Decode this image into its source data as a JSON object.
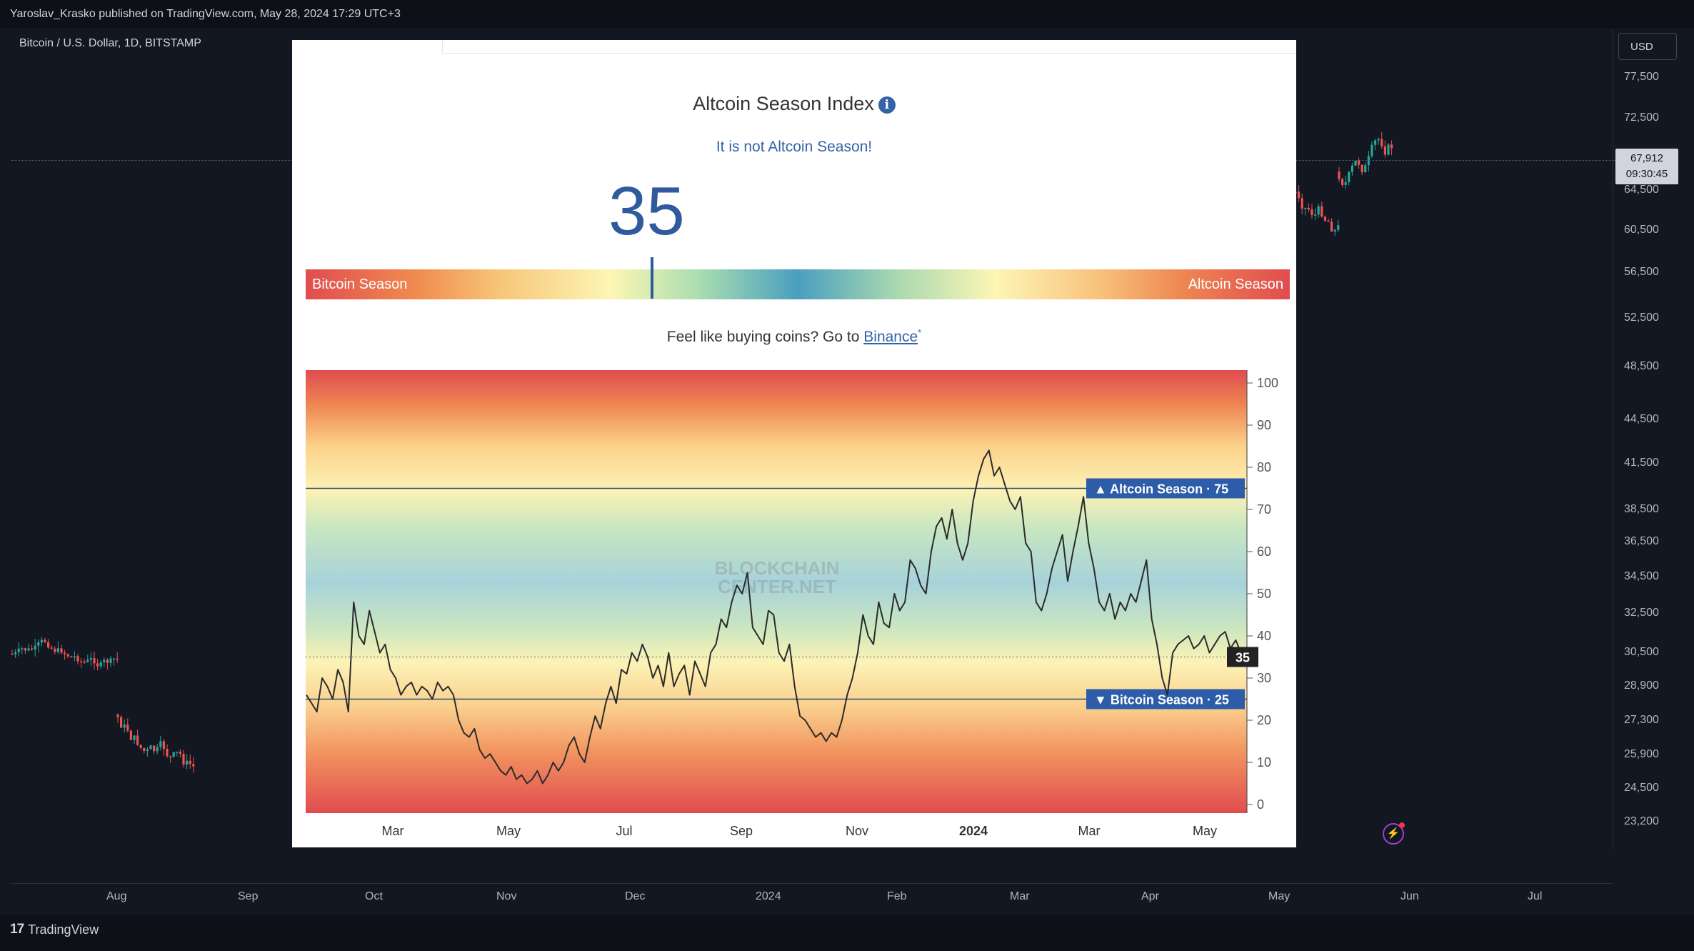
{
  "header": {
    "published": "Yaroslav_Krasko published on TradingView.com, May 28, 2024 17:29 UTC+3"
  },
  "chart": {
    "symbol": "Bitcoin / U.S. Dollar, 1D, BITSTAMP",
    "currency": "USD",
    "price_ticks": [
      "77,500",
      "72,500",
      "64,500",
      "60,500",
      "56,500",
      "52,500",
      "48,500",
      "44,500",
      "41,500",
      "38,500",
      "36,500",
      "34,500",
      "32,500",
      "30,500",
      "28,900",
      "27,300",
      "25,900",
      "24,500",
      "23,200"
    ],
    "last_price": "67,912",
    "countdown": "09:30:45",
    "time_ticks": [
      "Aug",
      "Sep",
      "Oct",
      "Nov",
      "Dec",
      "2024",
      "Feb",
      "Mar",
      "Apr",
      "May",
      "Jun",
      "Jul"
    ]
  },
  "panel": {
    "title": "Altcoin Season Index",
    "info_icon": "info-icon",
    "status": "It is not Altcoin Season!",
    "index_value": "35",
    "gauge_left": "Bitcoin Season",
    "gauge_right": "Altcoin Season",
    "buy_text": "Feel like buying coins? Go to",
    "buy_link": "Binance",
    "buy_mark": "*"
  },
  "footer": {
    "brand": "TradingView"
  },
  "colors": {
    "accent": "#3563a8",
    "bg": "#131722",
    "up": "#26a69a",
    "down": "#ef5350"
  },
  "chart_data": {
    "type": "line",
    "title": "Altcoin Season Index",
    "x_labels": [
      "Mar",
      "May",
      "Jul",
      "Sep",
      "Nov",
      "2024",
      "Mar",
      "May"
    ],
    "y_ticks": [
      0,
      10,
      20,
      30,
      40,
      50,
      60,
      70,
      80,
      90,
      100
    ],
    "ylim": [
      0,
      100
    ],
    "watermark": "BLOCKCHAIN CENTER.NET",
    "thresholds": [
      {
        "name": "Altcoin Season",
        "value": 75,
        "label": "▲ Altcoin Season · 75"
      },
      {
        "name": "Bitcoin Season",
        "value": 25,
        "label": "▼ Bitcoin Season · 25"
      }
    ],
    "current": 35,
    "series": [
      {
        "name": "Altcoin Season Index",
        "values": [
          26,
          24,
          22,
          30,
          28,
          25,
          32,
          29,
          22,
          48,
          40,
          38,
          46,
          41,
          36,
          38,
          32,
          30,
          26,
          28,
          29,
          26,
          28,
          27,
          25,
          29,
          27,
          28,
          26,
          20,
          17,
          16,
          18,
          13,
          11,
          12,
          10,
          8,
          7,
          9,
          6,
          7,
          5,
          6,
          8,
          5,
          7,
          10,
          8,
          10,
          14,
          16,
          12,
          10,
          16,
          21,
          18,
          24,
          28,
          24,
          32,
          31,
          36,
          34,
          38,
          35,
          30,
          33,
          28,
          36,
          28,
          31,
          33,
          26,
          34,
          31,
          28,
          36,
          38,
          44,
          42,
          48,
          52,
          50,
          55,
          42,
          40,
          38,
          46,
          45,
          36,
          34,
          38,
          28,
          21,
          20,
          18,
          16,
          17,
          15,
          17,
          16,
          20,
          26,
          30,
          36,
          45,
          40,
          38,
          48,
          43,
          42,
          50,
          46,
          48,
          58,
          56,
          52,
          50,
          60,
          66,
          68,
          63,
          70,
          62,
          58,
          62,
          72,
          78,
          82,
          84,
          78,
          80,
          76,
          72,
          70,
          73,
          62,
          60,
          48,
          46,
          50,
          56,
          60,
          64,
          53,
          60,
          66,
          73,
          62,
          56,
          48,
          46,
          50,
          44,
          48,
          46,
          50,
          48,
          53,
          58,
          44,
          38,
          30,
          26,
          36,
          38,
          39,
          40,
          37,
          38,
          40,
          36,
          38,
          40,
          41,
          37,
          39,
          36,
          35
        ]
      }
    ]
  }
}
